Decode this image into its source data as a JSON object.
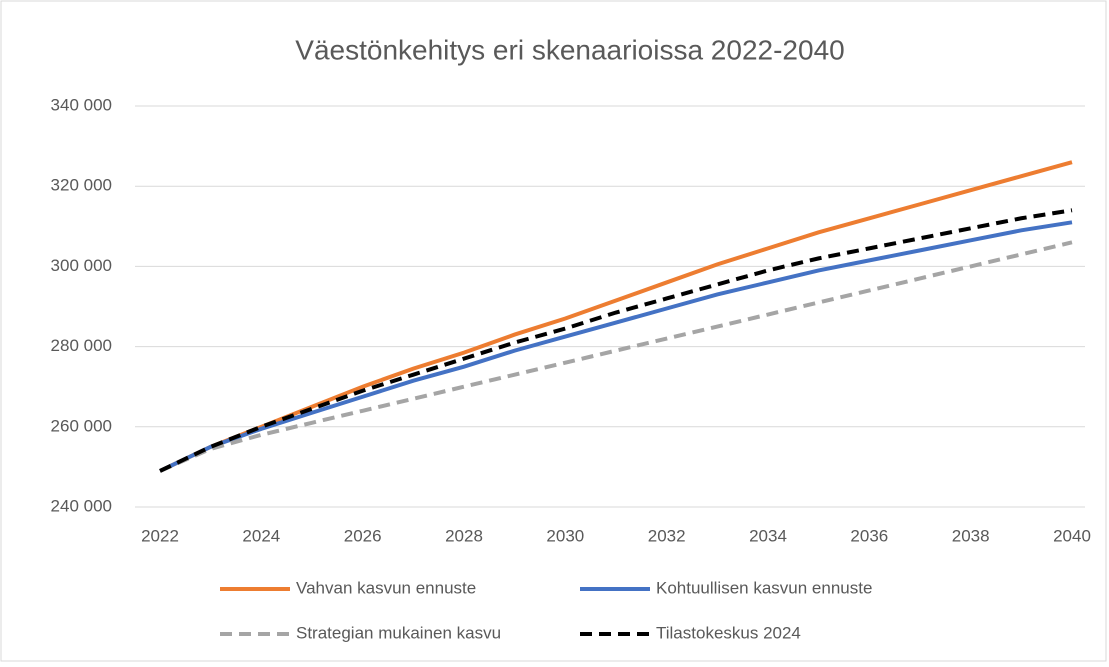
{
  "chart_data": {
    "type": "line",
    "title": "Väestönkehitys eri skenaarioissa 2022-2040",
    "x": [
      2022,
      2023,
      2024,
      2025,
      2026,
      2027,
      2028,
      2029,
      2030,
      2031,
      2032,
      2033,
      2034,
      2035,
      2036,
      2037,
      2038,
      2039,
      2040
    ],
    "series": [
      {
        "name": "Vahvan kasvun ennuste",
        "color": "#ed7d31",
        "dash": false,
        "values": [
          249000,
          255000,
          260000,
          265000,
          270000,
          274500,
          278500,
          283000,
          287000,
          291500,
          296000,
          300500,
          304500,
          308500,
          312000,
          315500,
          319000,
          322500,
          326000
        ]
      },
      {
        "name": "Kohtuullisen kasvun ennuste",
        "color": "#4472c4",
        "dash": false,
        "values": [
          249000,
          255000,
          259500,
          263500,
          267500,
          271500,
          275000,
          279000,
          282500,
          286000,
          289500,
          293000,
          296000,
          299000,
          301500,
          304000,
          306500,
          309000,
          311000
        ]
      },
      {
        "name": "Strategian mukainen kasvu",
        "color": "#a5a5a5",
        "dash": true,
        "values": [
          249000,
          254500,
          258000,
          261000,
          264000,
          267000,
          270000,
          273000,
          276000,
          279000,
          282000,
          285000,
          288000,
          291000,
          294000,
          297000,
          300000,
          303000,
          306000
        ]
      },
      {
        "name": "Tilastokeskus 2024",
        "color": "#000000",
        "dash": true,
        "values": [
          249000,
          255000,
          260000,
          264500,
          269000,
          273000,
          277000,
          281000,
          284500,
          288500,
          292000,
          295500,
          299000,
          302000,
          304500,
          307000,
          309500,
          312000,
          314000
        ]
      }
    ],
    "xlim": [
      2022,
      2040
    ],
    "xticks": [
      2022,
      2024,
      2026,
      2028,
      2030,
      2032,
      2034,
      2036,
      2038,
      2040
    ],
    "ylim": [
      240000,
      340000
    ],
    "yticks": [
      {
        "value": 240000,
        "label": "240 000"
      },
      {
        "value": 260000,
        "label": "260 000"
      },
      {
        "value": 280000,
        "label": "280 000"
      },
      {
        "value": 300000,
        "label": "300 000"
      },
      {
        "value": 320000,
        "label": "320 000"
      },
      {
        "value": 340000,
        "label": "340 000"
      }
    ],
    "grid": true,
    "legend": "bottom"
  }
}
